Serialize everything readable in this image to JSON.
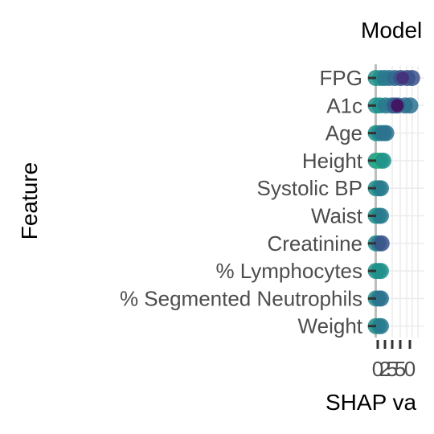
{
  "chart_data": {
    "type": "scatter",
    "title": "Model",
    "xlabel": "SHAP va",
    "ylabel": "Feature",
    "xlim": [
      -0.2,
      8.3
    ],
    "x_ticks": [
      "0",
      "2",
      "5",
      "5",
      "0"
    ],
    "categories": [
      "FPG",
      "A1c",
      "Age",
      "Height",
      "Systolic BP",
      "Waist",
      "Creatinine",
      "% Lymphocytes",
      "% Segmented Neutrophils",
      "Weight"
    ],
    "grid": true,
    "legend": "none",
    "series": [
      {
        "category": "FPG",
        "points": [
          [
            0.0,
            "#21918c"
          ],
          [
            0.8,
            "#21918c"
          ],
          [
            1.5,
            "#2a788e"
          ],
          [
            2.3,
            "#2a788e"
          ],
          [
            3.3,
            "#31688e"
          ],
          [
            4.3,
            "#3b528b"
          ],
          [
            5.4,
            "#3b528b"
          ],
          [
            6.2,
            "#3b528b"
          ],
          [
            4.6,
            "#482878"
          ]
        ]
      },
      {
        "category": "A1c",
        "points": [
          [
            0.0,
            "#21918c"
          ],
          [
            0.7,
            "#21918c"
          ],
          [
            1.7,
            "#2a788e"
          ],
          [
            2.7,
            "#2a788e"
          ],
          [
            3.8,
            "#31688e"
          ],
          [
            5.0,
            "#31688e"
          ],
          [
            5.9,
            "#2c728e"
          ],
          [
            3.3,
            "#3b528b"
          ],
          [
            3.7,
            "#440154"
          ]
        ]
      },
      {
        "category": "Age",
        "points": [
          [
            0.0,
            "#21918c"
          ],
          [
            0.5,
            "#21918c"
          ],
          [
            1.0,
            "#2a788e"
          ],
          [
            1.4,
            "#2a788e"
          ],
          [
            1.8,
            "#2c728e"
          ]
        ]
      },
      {
        "category": "Height",
        "points": [
          [
            0.0,
            "#21918c"
          ],
          [
            0.4,
            "#28ae80"
          ],
          [
            0.9,
            "#28ae80"
          ],
          [
            1.3,
            "#21918c"
          ]
        ]
      },
      {
        "category": "Systolic BP",
        "points": [
          [
            0.0,
            "#21918c"
          ],
          [
            0.5,
            "#21918c"
          ],
          [
            0.9,
            "#2a788e"
          ]
        ]
      },
      {
        "category": "Waist",
        "points": [
          [
            0.0,
            "#21918c"
          ],
          [
            0.5,
            "#21918c"
          ],
          [
            0.9,
            "#2a788e"
          ]
        ]
      },
      {
        "category": "Creatinine",
        "points": [
          [
            0.0,
            "#21918c"
          ],
          [
            0.5,
            "#2a788e"
          ],
          [
            1.0,
            "#3b528b"
          ]
        ]
      },
      {
        "category": "% Lymphocytes",
        "points": [
          [
            0.0,
            "#21918c"
          ],
          [
            0.5,
            "#21918c"
          ],
          [
            0.9,
            "#21918c"
          ]
        ]
      },
      {
        "category": "% Segmented Neutrophils",
        "points": [
          [
            0.0,
            "#21918c"
          ],
          [
            0.5,
            "#2a788e"
          ],
          [
            0.9,
            "#2c728e"
          ]
        ]
      },
      {
        "category": "Weight",
        "points": [
          [
            0.0,
            "#21918c"
          ],
          [
            0.5,
            "#21918c"
          ],
          [
            0.9,
            "#2a788e"
          ]
        ]
      }
    ]
  }
}
